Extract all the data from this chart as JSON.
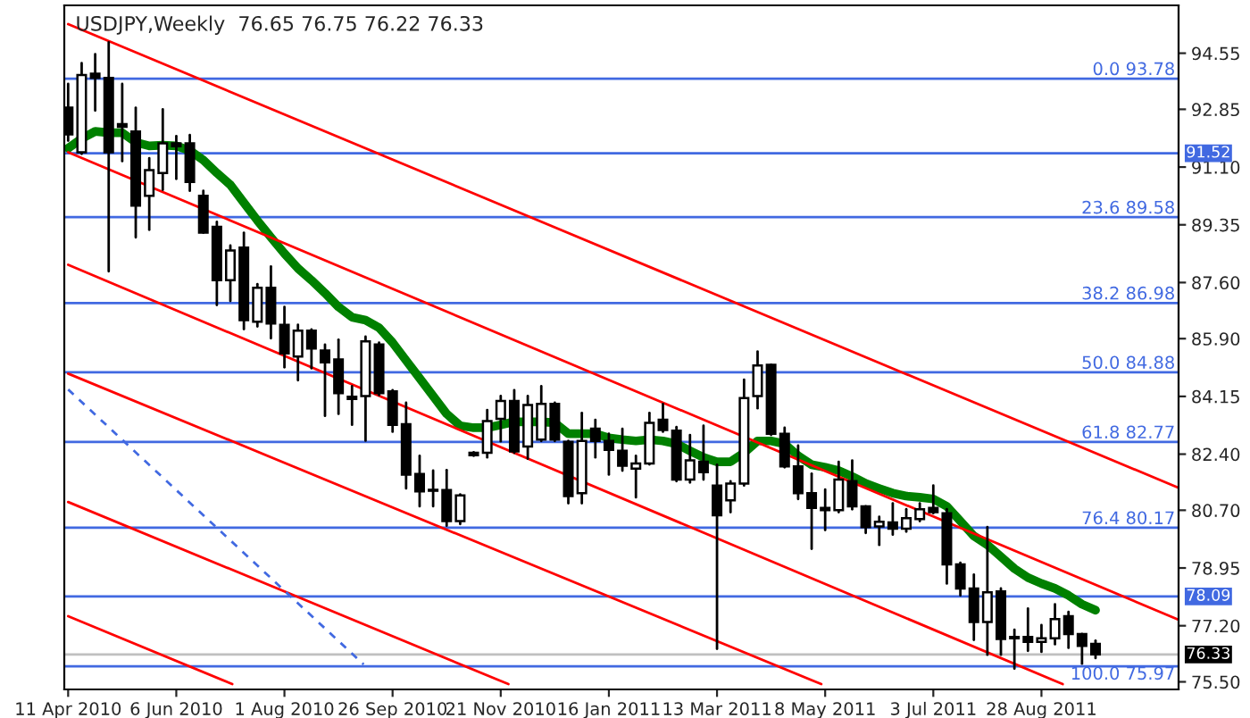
{
  "chart_data": {
    "type": "candlestick",
    "title": "USDJPY,Weekly  76.65 76.75 76.22 76.33",
    "x": [
      "2010-04-11",
      "2010-04-18",
      "2010-04-25",
      "2010-05-02",
      "2010-05-09",
      "2010-05-16",
      "2010-05-23",
      "2010-05-30",
      "2010-06-06",
      "2010-06-13",
      "2010-06-20",
      "2010-06-27",
      "2010-07-04",
      "2010-07-11",
      "2010-07-18",
      "2010-07-25",
      "2010-08-01",
      "2010-08-08",
      "2010-08-15",
      "2010-08-22",
      "2010-08-29",
      "2010-09-05",
      "2010-09-12",
      "2010-09-19",
      "2010-09-26",
      "2010-10-03",
      "2010-10-10",
      "2010-10-17",
      "2010-10-24",
      "2010-10-31",
      "2010-11-07",
      "2010-11-14",
      "2010-11-21",
      "2010-11-28",
      "2010-12-05",
      "2010-12-12",
      "2010-12-19",
      "2010-12-26",
      "2011-01-02",
      "2011-01-09",
      "2011-01-16",
      "2011-01-23",
      "2011-01-30",
      "2011-02-06",
      "2011-02-13",
      "2011-02-20",
      "2011-02-27",
      "2011-03-06",
      "2011-03-13",
      "2011-03-20",
      "2011-03-27",
      "2011-04-03",
      "2011-04-10",
      "2011-04-17",
      "2011-04-24",
      "2011-05-01",
      "2011-05-08",
      "2011-05-15",
      "2011-05-22",
      "2011-05-29",
      "2011-06-05",
      "2011-06-12",
      "2011-06-19",
      "2011-06-26",
      "2011-07-03",
      "2011-07-10",
      "2011-07-17",
      "2011-07-24",
      "2011-07-31",
      "2011-08-07",
      "2011-08-14",
      "2011-08-21",
      "2011-08-28",
      "2011-09-04",
      "2011-09-11",
      "2011-09-18",
      "2011-09-25"
    ],
    "ohlc": [
      [
        92.9,
        93.62,
        91.9,
        92.09
      ],
      [
        91.55,
        94.25,
        91.5,
        93.89
      ],
      [
        93.93,
        94.52,
        92.81,
        93.8
      ],
      [
        93.8,
        94.88,
        87.94,
        91.55
      ],
      [
        92.4,
        93.62,
        91.28,
        92.32
      ],
      [
        92.18,
        92.9,
        88.97,
        89.93
      ],
      [
        90.23,
        91.37,
        89.2,
        91.01
      ],
      [
        90.92,
        92.85,
        90.41,
        91.82
      ],
      [
        91.82,
        92.04,
        90.74,
        91.73
      ],
      [
        91.82,
        92.07,
        90.38,
        90.65
      ],
      [
        90.23,
        90.38,
        89.11,
        89.11
      ],
      [
        89.29,
        89.44,
        86.92,
        87.67
      ],
      [
        87.67,
        88.72,
        87.04,
        88.57
      ],
      [
        88.66,
        89.11,
        86.19,
        86.46
      ],
      [
        86.41,
        87.55,
        86.27,
        87.44
      ],
      [
        87.44,
        88.09,
        85.91,
        86.36
      ],
      [
        86.32,
        86.86,
        85.03,
        85.45
      ],
      [
        85.36,
        86.32,
        84.64,
        86.14
      ],
      [
        86.14,
        86.18,
        85.0,
        85.6
      ],
      [
        85.54,
        85.72,
        83.56,
        85.18
      ],
      [
        85.27,
        85.87,
        83.62,
        84.25
      ],
      [
        84.14,
        84.46,
        83.29,
        84.07
      ],
      [
        84.16,
        85.96,
        82.81,
        85.82
      ],
      [
        85.72,
        85.78,
        84.19,
        84.25
      ],
      [
        84.3,
        84.34,
        83.08,
        83.29
      ],
      [
        83.31,
        83.96,
        81.36,
        81.78
      ],
      [
        81.8,
        82.35,
        80.82,
        81.27
      ],
      [
        81.32,
        81.9,
        80.82,
        81.29
      ],
      [
        81.31,
        81.92,
        80.23,
        80.37
      ],
      [
        80.37,
        81.18,
        80.28,
        81.15
      ],
      [
        82.44,
        82.46,
        82.35,
        82.37
      ],
      [
        82.44,
        83.74,
        82.3,
        83.4
      ],
      [
        83.47,
        84.16,
        82.79,
        84.01
      ],
      [
        84.01,
        84.34,
        82.44,
        82.48
      ],
      [
        82.63,
        84.16,
        82.26,
        83.89
      ],
      [
        82.84,
        84.46,
        82.8,
        83.92
      ],
      [
        83.92,
        83.96,
        82.8,
        82.84
      ],
      [
        82.77,
        82.8,
        80.91,
        81.13
      ],
      [
        81.22,
        83.65,
        80.91,
        82.8
      ],
      [
        83.17,
        83.44,
        82.3,
        82.8
      ],
      [
        82.8,
        83.02,
        81.78,
        82.53
      ],
      [
        82.5,
        83.17,
        81.9,
        82.05
      ],
      [
        81.96,
        82.35,
        81.09,
        82.12
      ],
      [
        82.12,
        83.65,
        82.09,
        83.35
      ],
      [
        83.44,
        83.92,
        83.08,
        83.13
      ],
      [
        83.11,
        83.22,
        81.58,
        81.63
      ],
      [
        81.63,
        82.98,
        81.54,
        82.21
      ],
      [
        82.17,
        83.26,
        81.63,
        81.85
      ],
      [
        81.45,
        82.08,
        76.5,
        80.55
      ],
      [
        81.0,
        81.58,
        80.64,
        81.51
      ],
      [
        81.51,
        84.66,
        81.45,
        84.1
      ],
      [
        84.16,
        85.51,
        83.79,
        85.09
      ],
      [
        85.11,
        85.11,
        82.98,
        83.02
      ],
      [
        83.02,
        83.2,
        82.0,
        82.03
      ],
      [
        82.03,
        82.66,
        81.04,
        81.22
      ],
      [
        81.22,
        81.81,
        79.53,
        80.77
      ],
      [
        80.77,
        81.33,
        80.1,
        80.7
      ],
      [
        80.7,
        82.17,
        80.64,
        81.63
      ],
      [
        81.58,
        82.21,
        80.73,
        80.82
      ],
      [
        80.82,
        80.82,
        80.01,
        80.19
      ],
      [
        80.21,
        80.5,
        79.65,
        80.35
      ],
      [
        80.33,
        80.91,
        79.96,
        80.14
      ],
      [
        80.14,
        80.73,
        80.05,
        80.46
      ],
      [
        80.43,
        80.91,
        80.37,
        80.73
      ],
      [
        80.77,
        81.45,
        80.61,
        80.64
      ],
      [
        80.61,
        80.73,
        78.48,
        79.06
      ],
      [
        79.06,
        79.11,
        78.12,
        78.33
      ],
      [
        78.33,
        78.75,
        76.77,
        77.31
      ],
      [
        77.31,
        80.19,
        76.32,
        78.21
      ],
      [
        78.24,
        78.33,
        76.32,
        76.8
      ],
      [
        76.86,
        77.08,
        75.9,
        76.82
      ],
      [
        76.86,
        77.72,
        76.44,
        76.71
      ],
      [
        76.71,
        77.22,
        76.41,
        76.82
      ],
      [
        76.82,
        77.85,
        76.64,
        77.4
      ],
      [
        77.49,
        77.62,
        76.53,
        76.95
      ],
      [
        76.95,
        76.95,
        76.05,
        76.59
      ],
      [
        76.65,
        76.75,
        76.22,
        76.33
      ]
    ],
    "series": [
      {
        "type": "line",
        "color": "#008000",
        "values": [
          91.67,
          91.96,
          92.18,
          92.14,
          92.14,
          91.85,
          91.74,
          91.76,
          91.74,
          91.6,
          91.31,
          90.92,
          90.56,
          90.02,
          89.48,
          88.97,
          88.48,
          88.03,
          87.67,
          87.28,
          86.86,
          86.55,
          86.46,
          86.23,
          85.78,
          85.24,
          84.7,
          84.16,
          83.62,
          83.26,
          83.2,
          83.2,
          83.29,
          83.38,
          83.38,
          83.38,
          83.35,
          83.02,
          83.02,
          83.02,
          82.89,
          82.84,
          82.8,
          82.84,
          82.8,
          82.71,
          82.5,
          82.3,
          82.17,
          82.17,
          82.44,
          82.8,
          82.8,
          82.71,
          82.35,
          82.08,
          82.0,
          81.9,
          81.72,
          81.51,
          81.36,
          81.22,
          81.13,
          81.09,
          81.04,
          80.82,
          80.37,
          79.92,
          79.65,
          79.29,
          78.93,
          78.66,
          78.48,
          78.33,
          78.12,
          77.85,
          77.67
        ]
      },
      {
        "type": "line",
        "color": "#ff0000",
        "x": [
          "2010-04-11",
          "2011-11-07"
        ],
        "values": [
          95.43,
          81.38
        ]
      },
      {
        "type": "line",
        "color": "#ff0000",
        "x": [
          "2010-04-11",
          "2011-11-07"
        ],
        "values": [
          91.55,
          77.38
        ]
      },
      {
        "type": "line",
        "color": "#ff0000",
        "x": [
          "2010-04-11",
          "2011-09-08"
        ],
        "values": [
          88.14,
          75.43
        ]
      },
      {
        "type": "line",
        "color": "#ff0000",
        "x": [
          "2010-04-11",
          "2011-05-06"
        ],
        "values": [
          84.84,
          75.43
        ]
      },
      {
        "type": "line",
        "color": "#ff0000",
        "x": [
          "2010-04-11",
          "2010-11-25"
        ],
        "values": [
          80.95,
          75.43
        ]
      },
      {
        "type": "line",
        "color": "#ff0000",
        "x": [
          "2010-04-11",
          "2010-07-05"
        ],
        "values": [
          77.49,
          75.43
        ]
      },
      {
        "type": "line",
        "color": "#4169e1",
        "line_style": "dashed",
        "x": [
          "2010-04-11",
          "2010-09-11"
        ],
        "values": [
          84.36,
          76.03
        ]
      }
    ],
    "ref_lines": [
      {
        "axis": "y",
        "value": 93.78,
        "label": "0.0 93.78",
        "color": "#4169e1"
      },
      {
        "axis": "y",
        "value": 91.52,
        "color": "#4169e1"
      },
      {
        "axis": "y",
        "value": 89.58,
        "label": "23.6 89.58",
        "color": "#4169e1"
      },
      {
        "axis": "y",
        "value": 86.98,
        "label": "38.2 86.98",
        "color": "#4169e1"
      },
      {
        "axis": "y",
        "value": 84.88,
        "label": "50.0 84.88",
        "color": "#4169e1"
      },
      {
        "axis": "y",
        "value": 82.77,
        "label": "61.8 82.77",
        "color": "#4169e1"
      },
      {
        "axis": "y",
        "value": 80.17,
        "label": "76.4 80.17",
        "color": "#4169e1"
      },
      {
        "axis": "y",
        "value": 78.09,
        "color": "#4169e1"
      },
      {
        "axis": "y",
        "value": 76.33,
        "color": "#c0c0c0"
      },
      {
        "axis": "y",
        "value": 75.97,
        "label": "100.0 75.97",
        "color": "#4169e1"
      }
    ],
    "annotations": [
      "91.52",
      "78.09",
      "76.33"
    ],
    "xlim": [
      "2010-04-09",
      "2011-11-07"
    ],
    "xticks": [
      {
        "value": "2010-04-11",
        "label": "11 Apr 2010"
      },
      {
        "value": "2010-06-06",
        "label": "6 Jun 2010"
      },
      {
        "value": "2010-08-01",
        "label": "1 Aug 2010"
      },
      {
        "value": "2010-09-26",
        "label": "26 Sep 2010"
      },
      {
        "value": "2010-11-21",
        "label": "21 Nov 2010"
      },
      {
        "value": "2011-01-16",
        "label": "16 Jan 2011"
      },
      {
        "value": "2011-03-13",
        "label": "13 Mar 2011"
      },
      {
        "value": "2011-05-08",
        "label": "8 May 2011"
      },
      {
        "value": "2011-07-03",
        "label": "3 Jul 2011"
      },
      {
        "value": "2011-08-28",
        "label": "28 Aug 2011"
      }
    ],
    "ylim": [
      75.27,
      96.0
    ],
    "yticks": [
      94.55,
      92.85,
      {
        "value": 91.1,
        "label": "91.10"
      },
      89.35,
      {
        "value": 87.6,
        "label": "87.60"
      },
      {
        "value": 85.9,
        "label": "85.90"
      },
      84.15,
      {
        "value": 82.4,
        "label": "82.40"
      },
      {
        "value": 80.7,
        "label": "80.70"
      },
      78.95,
      {
        "value": 77.2,
        "label": "77.20"
      },
      {
        "value": 75.5,
        "label": "75.50"
      }
    ]
  }
}
